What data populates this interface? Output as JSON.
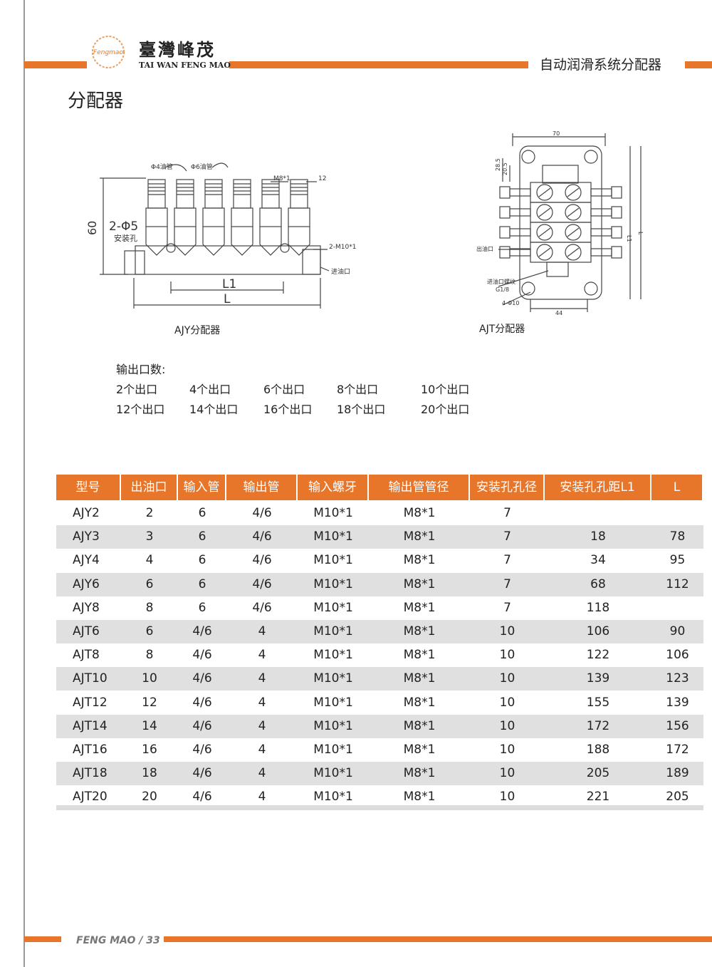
{
  "header": {
    "logo_text": "Fengmao",
    "brand_cn": "臺灣峰茂",
    "brand_en": "TAI WAN FENG MAO",
    "section": "自动润滑系统分配器"
  },
  "title": "分配器",
  "diagrams": [
    {
      "caption": "AJY分配器",
      "labels": [
        "Φ4油管",
        "Φ6油管",
        "M8*1",
        "12",
        "60",
        "2-Φ5",
        "安装孔",
        "2-M10*1",
        "进油口",
        "L1",
        "L"
      ]
    },
    {
      "caption": "AJT分配器",
      "labels": [
        "70",
        "28.5",
        "20.5",
        "出油口",
        "进油口螺纹",
        "G1/8",
        "4-Φ10",
        "44",
        "L1",
        "L"
      ]
    }
  ],
  "outputs": {
    "label": "输出口数:",
    "items": [
      "2个出口",
      "4个出口",
      "6个出口",
      "8个出口",
      "10个出口",
      "12个出口",
      "14个出口",
      "16个出口",
      "18个出口",
      "20个出口"
    ]
  },
  "table": {
    "headers": [
      "型号",
      "出油口",
      "输入管",
      "输出管",
      "输入螺牙",
      "输出管管径",
      "安装孔孔径",
      "安装孔孔距L1",
      "L"
    ],
    "rows": [
      [
        "AJY2",
        "2",
        "6",
        "4/6",
        "M10*1",
        "M8*1",
        "7",
        null,
        null
      ],
      [
        "AJY3",
        "3",
        "6",
        "4/6",
        "M10*1",
        "M8*1",
        "7",
        "18",
        "78"
      ],
      [
        "AJY4",
        "4",
        "6",
        "4/6",
        "M10*1",
        "M8*1",
        "7",
        "34",
        "95"
      ],
      [
        "AJY6",
        "6",
        "6",
        "4/6",
        "M10*1",
        "M8*1",
        "7",
        "68",
        "112"
      ],
      [
        "AJY8",
        "8",
        "6",
        "4/6",
        "M10*1",
        "M8*1",
        "7",
        "118",
        null
      ],
      [
        "AJT6",
        "6",
        "4/6",
        "4",
        "M10*1",
        "M8*1",
        "10",
        "106",
        "90"
      ],
      [
        "AJT8",
        "8",
        "4/6",
        "4",
        "M10*1",
        "M8*1",
        "10",
        "122",
        "106"
      ],
      [
        "AJT10",
        "10",
        "4/6",
        "4",
        "M10*1",
        "M8*1",
        "10",
        "139",
        "123"
      ],
      [
        "AJT12",
        "12",
        "4/6",
        "4",
        "M10*1",
        "M8*1",
        "10",
        "155",
        "139"
      ],
      [
        "AJT14",
        "14",
        "4/6",
        "4",
        "M10*1",
        "M8*1",
        "10",
        "172",
        "156"
      ],
      [
        "AJT16",
        "16",
        "4/6",
        "4",
        "M10*1",
        "M8*1",
        "10",
        "188",
        "172"
      ],
      [
        "AJT18",
        "18",
        "4/6",
        "4",
        "M10*1",
        "M8*1",
        "10",
        "205",
        "189"
      ],
      [
        "AJT20",
        "20",
        "4/6",
        "4",
        "M10*1",
        "M8*1",
        "10",
        "221",
        "205"
      ]
    ]
  },
  "footer": "FENG MAO / 33"
}
